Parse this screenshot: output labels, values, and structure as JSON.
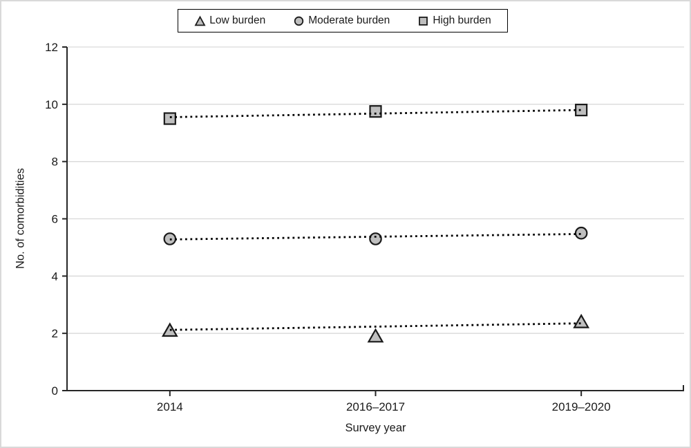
{
  "chart_data": {
    "type": "scatter",
    "title": "",
    "xlabel": "Survey year",
    "ylabel": "No. of comorbidities",
    "categories": [
      "2014",
      "2016–2017",
      "2019–2020"
    ],
    "y_ticks": [
      0,
      2,
      4,
      6,
      8,
      10,
      12
    ],
    "ylim": [
      0,
      12
    ],
    "grid": "horizontal gridlines at every y tick, light gray",
    "legend_position": "top-center, boxed",
    "series": [
      {
        "name": "Low burden",
        "marker": "triangle",
        "values": [
          2.1,
          1.9,
          2.4
        ],
        "trendline": {
          "style": "dotted",
          "start": 2.12,
          "end": 2.35
        }
      },
      {
        "name": "Moderate burden",
        "marker": "circle",
        "values": [
          5.3,
          5.3,
          5.5
        ],
        "trendline": {
          "style": "dotted",
          "start": 5.28,
          "end": 5.47
        }
      },
      {
        "name": "High burden",
        "marker": "square",
        "values": [
          9.5,
          9.75,
          9.8
        ],
        "trendline": {
          "style": "dotted",
          "start": 9.55,
          "end": 9.8
        }
      }
    ],
    "colors": {
      "marker_fill": "#bfbfbf",
      "marker_stroke": "#1a1a1a",
      "trendline": "#000000",
      "gridline": "#d9d9d9",
      "axis": "#262626",
      "text": "#1a1a1a"
    }
  }
}
